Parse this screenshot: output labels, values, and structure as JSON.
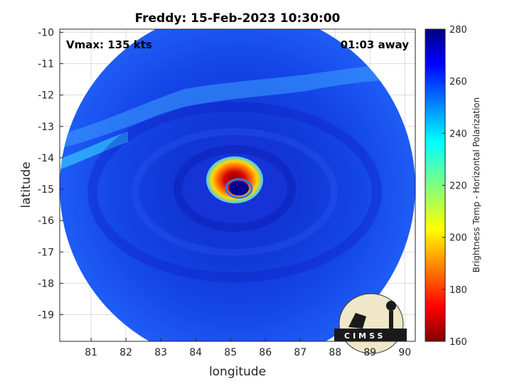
{
  "chart_data": {
    "type": "heatmap",
    "title": "Freddy: 15-Feb-2023 10:30:00",
    "xlabel": "longitude",
    "ylabel": "latitude",
    "xlim": [
      80.1,
      90.3
    ],
    "ylim": [
      -19.85,
      -9.9
    ],
    "x_ticks": [
      81,
      82,
      83,
      84,
      85,
      86,
      87,
      88,
      89,
      90
    ],
    "y_ticks": [
      -10,
      -11,
      -12,
      -13,
      -14,
      -15,
      -16,
      -17,
      -18,
      -19
    ],
    "grid": true,
    "annotations": {
      "top_left": "Vmax: 135 kts",
      "top_right": "01:03 away"
    },
    "colorbar": {
      "label": "Brightness Temp - Horizontal Polarization",
      "range": [
        160,
        280
      ],
      "ticks": [
        160,
        180,
        200,
        220,
        240,
        260,
        280
      ],
      "colormap": "jet"
    },
    "features": {
      "swath_center": {
        "lon": 85.2,
        "lat": -14.9
      },
      "background_value": 258,
      "eyewall": {
        "lon": 85.1,
        "lat": -14.8,
        "min_value": 175
      },
      "eye": {
        "lon": 85.25,
        "lat": -15.0,
        "value": 272
      },
      "cold_band": {
        "description": "cyan band along west edge",
        "value": 238
      }
    },
    "logo": "CIMSS"
  }
}
